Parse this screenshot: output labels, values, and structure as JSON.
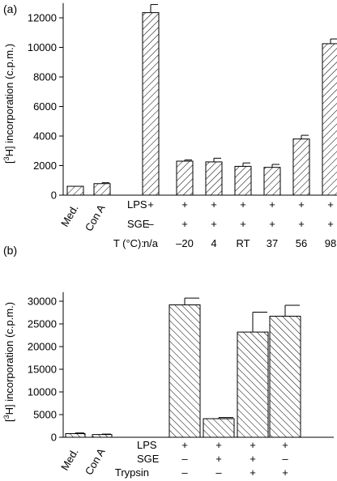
{
  "chart_data": [
    {
      "type": "bar",
      "panel_label": "(a)",
      "ylabel": "[3H] incorporation (c.p.m.)",
      "ylabel_parts": {
        "open": "[",
        "sup": "3",
        "rest": "H] incorporation (c.p.m.)"
      },
      "ylim": [
        0,
        13000
      ],
      "yticks": [
        0,
        2000,
        4000,
        6000,
        8000,
        10000,
        12000
      ],
      "controls": [
        {
          "label": "Med.",
          "value": 600,
          "error": 0
        },
        {
          "label": "Con A",
          "value": 780,
          "error": 60
        }
      ],
      "row_labels": [
        "LPS",
        "SGE",
        "T (°C):"
      ],
      "groups": [
        {
          "value": 12350,
          "error": 550,
          "conditions": [
            "+",
            "–",
            "n/a"
          ]
        },
        {
          "value": 2300,
          "error": 80,
          "conditions": [
            "+",
            "+",
            "–20"
          ]
        },
        {
          "value": 2250,
          "error": 250,
          "conditions": [
            "+",
            "+",
            "4"
          ]
        },
        {
          "value": 1950,
          "error": 230,
          "conditions": [
            "+",
            "+",
            "RT"
          ]
        },
        {
          "value": 1880,
          "error": 200,
          "conditions": [
            "+",
            "+",
            "37"
          ]
        },
        {
          "value": 3800,
          "error": 250,
          "conditions": [
            "+",
            "+",
            "56"
          ]
        },
        {
          "value": 10250,
          "error": 320,
          "conditions": [
            "+",
            "+",
            "98"
          ]
        }
      ]
    },
    {
      "type": "bar",
      "panel_label": "(b)",
      "ylabel": "[3H] incorporation (c.p.m.)",
      "ylabel_parts": {
        "open": "[",
        "sup": "3",
        "rest": "H] incorporation (c.p.m.)"
      },
      "ylim": [
        0,
        32000
      ],
      "yticks": [
        0,
        5000,
        10000,
        15000,
        20000,
        25000,
        30000
      ],
      "controls": [
        {
          "label": "Med.",
          "value": 800,
          "error": 150
        },
        {
          "label": "Con A",
          "value": 600,
          "error": 100
        }
      ],
      "row_labels": [
        "LPS",
        "SGE",
        "Trypsin"
      ],
      "groups": [
        {
          "value": 29200,
          "error": 1500,
          "conditions": [
            "+",
            "–",
            "–"
          ]
        },
        {
          "value": 4100,
          "error": 250,
          "conditions": [
            "+",
            "+",
            "–"
          ]
        },
        {
          "value": 23200,
          "error": 4400,
          "conditions": [
            "+",
            "+",
            "+"
          ]
        },
        {
          "value": 26700,
          "error": 2400,
          "conditions": [
            "+",
            "–",
            "+"
          ]
        }
      ]
    }
  ]
}
